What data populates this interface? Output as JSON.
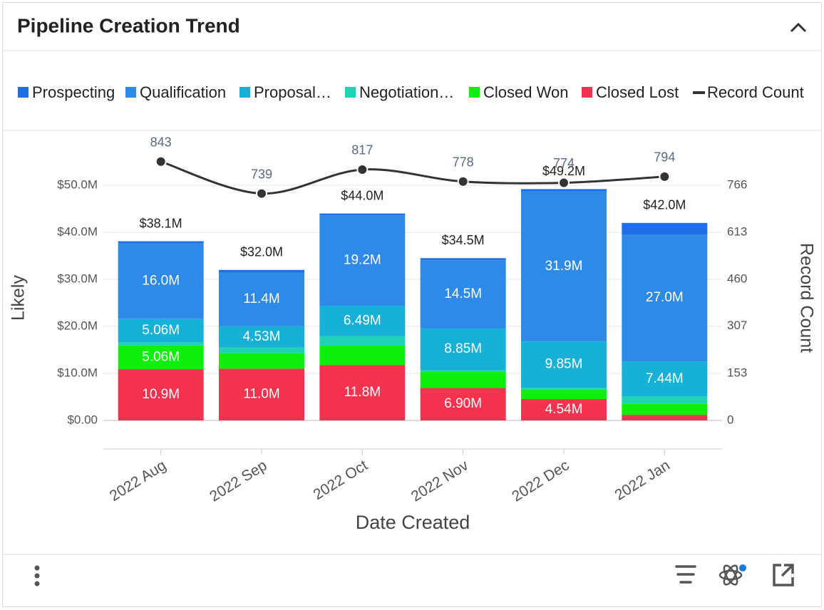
{
  "header": {
    "title": "Pipeline Creation Trend"
  },
  "chart_data": {
    "type": "bar",
    "stacked": true,
    "categories": [
      "2022 Aug",
      "2022 Sep",
      "2022 Oct",
      "2022 Nov",
      "2022 Dec",
      "2022 Jan"
    ],
    "series": [
      {
        "name": "Closed Lost",
        "color": "#f5334f",
        "values": [
          10900000,
          11000000,
          11800000,
          6900000,
          4540000,
          1200000
        ],
        "value_labels": [
          "10.9M",
          "11.0M",
          "11.8M",
          "6.90M",
          "4.54M",
          null
        ]
      },
      {
        "name": "Closed Won",
        "color": "#0cf00c",
        "values": [
          5060000,
          3300000,
          4100000,
          3500000,
          2000000,
          2400000
        ],
        "value_labels": [
          "5.06M",
          null,
          null,
          null,
          null,
          null
        ]
      },
      {
        "name": "Negotiation…",
        "color": "#1ed3b4",
        "values": [
          600000,
          1200000,
          2000000,
          300000,
          400000,
          1500000
        ],
        "value_labels": [
          null,
          null,
          null,
          null,
          null,
          null
        ]
      },
      {
        "name": "Proposal…",
        "color": "#17b0d6",
        "values": [
          5060000,
          4530000,
          6490000,
          8850000,
          9850000,
          7440000
        ],
        "value_labels": [
          "5.06M",
          "4.53M",
          "6.49M",
          "8.85M",
          "9.85M",
          "7.44M"
        ]
      },
      {
        "name": "Qualification",
        "color": "#2e8ae6",
        "values": [
          16000000,
          11400000,
          19200000,
          14500000,
          31900000,
          27000000
        ],
        "value_labels": [
          "16.0M",
          "11.4M",
          "19.2M",
          "14.5M",
          "31.9M",
          "27.0M"
        ]
      },
      {
        "name": "Prospecting",
        "color": "#1f6fe8",
        "values": [
          480000,
          570000,
          410000,
          450000,
          500000,
          2460000
        ],
        "value_labels": [
          null,
          null,
          null,
          null,
          null,
          null
        ]
      },
      {
        "name": "Record Count",
        "color": "#333333",
        "type": "line",
        "axis": "y2",
        "values": [
          843,
          739,
          817,
          778,
          774,
          794
        ]
      }
    ],
    "totals": [
      38100000,
      32000000,
      44000000,
      34500000,
      49200000,
      42000000
    ],
    "total_labels": [
      "$38.1M",
      "$32.0M",
      "$44.0M",
      "$34.5M",
      "$49.2M",
      "$42.0M"
    ],
    "legend_order": [
      5,
      4,
      3,
      2,
      1,
      0,
      6
    ],
    "ylabel": "Likely",
    "y2label": "Record Count",
    "xlabel": "Date Created",
    "ylim": [
      0,
      60000000
    ],
    "yticks": [
      {
        "value": 0,
        "label": "$0.00"
      },
      {
        "value": 10000000,
        "label": "$10.0M"
      },
      {
        "value": 20000000,
        "label": "$20.0M"
      },
      {
        "value": 30000000,
        "label": "$30.0M"
      },
      {
        "value": 40000000,
        "label": "$40.0M"
      },
      {
        "value": 50000000,
        "label": "$50.0M"
      }
    ],
    "y2lim": [
      0,
      919
    ],
    "y2ticks": [
      0,
      153,
      307,
      460,
      613,
      766
    ],
    "grid": true,
    "legend": "top"
  }
}
